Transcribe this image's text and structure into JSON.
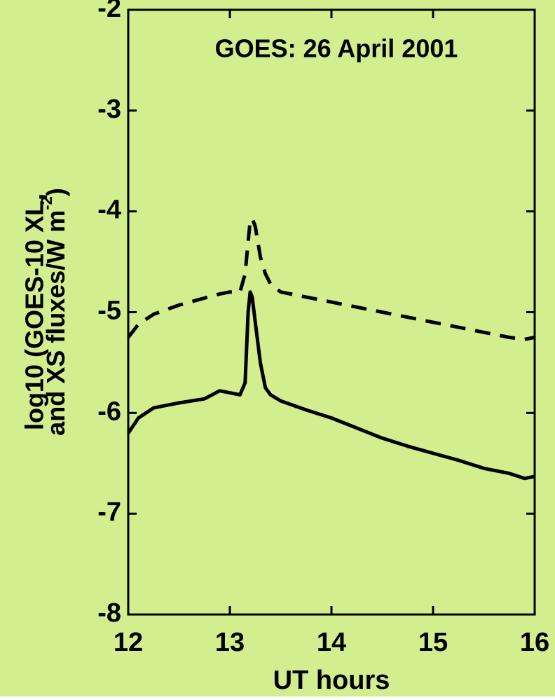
{
  "chart_data": {
    "type": "line",
    "title": "GOES: 26 April 2001",
    "xlabel": "UT hours",
    "ylabel": [
      "log10 (GOES-10 XL,",
      "and XS fluxes/W m"
    ],
    "ylabel_superscript": "-2",
    "ylabel_close": ")",
    "x": [
      12,
      12.1,
      12.25,
      12.5,
      12.75,
      12.9,
      13.0,
      13.1,
      13.15,
      13.18,
      13.2,
      13.22,
      13.25,
      13.3,
      13.35,
      13.4,
      13.5,
      13.75,
      14,
      14.25,
      14.5,
      14.75,
      15,
      15.25,
      15.5,
      15.75,
      15.9,
      16
    ],
    "series": [
      {
        "color": "#000000",
        "dashed": true,
        "values": [
          -5.25,
          -5.12,
          -5.02,
          -4.93,
          -4.86,
          -4.82,
          -4.8,
          -4.8,
          -4.62,
          -4.3,
          -4.1,
          -4.07,
          -4.15,
          -4.45,
          -4.62,
          -4.72,
          -4.8,
          -4.85,
          -4.9,
          -4.95,
          -5.0,
          -5.05,
          -5.1,
          -5.15,
          -5.2,
          -5.25,
          -5.27,
          -5.25
        ]
      },
      {
        "color": "#000000",
        "dashed": false,
        "values": [
          -6.2,
          -6.05,
          -5.95,
          -5.9,
          -5.86,
          -5.78,
          -5.8,
          -5.82,
          -5.7,
          -5.0,
          -4.8,
          -4.85,
          -5.1,
          -5.5,
          -5.75,
          -5.82,
          -5.88,
          -5.97,
          -6.05,
          -6.15,
          -6.25,
          -6.33,
          -6.4,
          -6.47,
          -6.55,
          -6.6,
          -6.65,
          -6.63
        ]
      }
    ],
    "xlim": [
      12,
      16
    ],
    "xticks": [
      12,
      13,
      14,
      15,
      16
    ],
    "ylim": [
      -8,
      -2
    ],
    "yticks": [
      -8,
      -7,
      -6,
      -5,
      -4,
      -3,
      -2
    ],
    "background": "#d2ee8e"
  }
}
